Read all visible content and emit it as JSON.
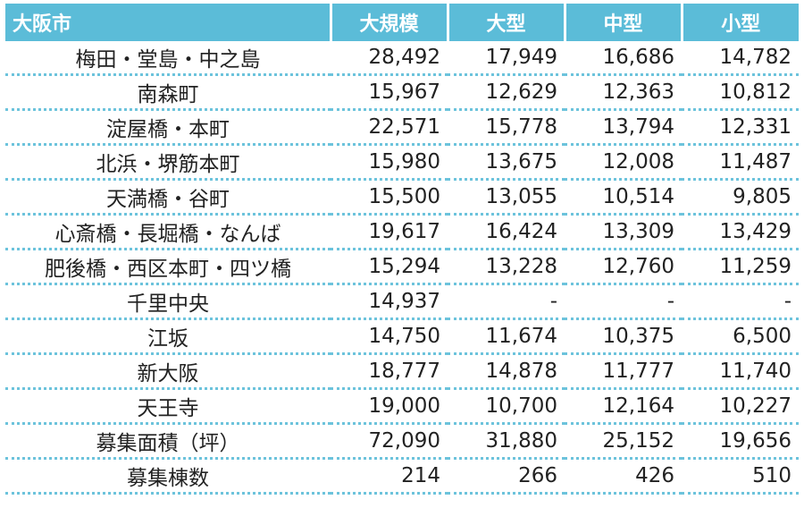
{
  "table": {
    "header": [
      "大阪市",
      "大規模",
      "大型",
      "中型",
      "小型"
    ],
    "rows": [
      [
        "梅田・堂島・中之島",
        "28,492",
        "17,949",
        "16,686",
        "14,782"
      ],
      [
        "南森町",
        "15,967",
        "12,629",
        "12,363",
        "10,812"
      ],
      [
        "淀屋橋・本町",
        "22,571",
        "15,778",
        "13,794",
        "12,331"
      ],
      [
        "北浜・堺筋本町",
        "15,980",
        "13,675",
        "12,008",
        "11,487"
      ],
      [
        "天満橋・谷町",
        "15,500",
        "13,055",
        "10,514",
        "9,805"
      ],
      [
        "心斎橋・長堀橋・なんば",
        "19,617",
        "16,424",
        "13,309",
        "13,429"
      ],
      [
        "肥後橋・西区本町・四ツ橋",
        "15,294",
        "13,228",
        "12,760",
        "11,259"
      ],
      [
        "千里中央",
        "14,937",
        "-",
        "-",
        "-"
      ],
      [
        "江坂",
        "14,750",
        "11,674",
        "10,375",
        "6,500"
      ],
      [
        "新大阪",
        "18,777",
        "14,878",
        "11,777",
        "11,740"
      ],
      [
        "天王寺",
        "19,000",
        "10,700",
        "12,164",
        "10,227"
      ],
      [
        "募集面積（坪）",
        "72,090",
        "31,880",
        "25,152",
        "19,656"
      ],
      [
        "募集棟数",
        "214",
        "266",
        "426",
        "510"
      ]
    ]
  }
}
